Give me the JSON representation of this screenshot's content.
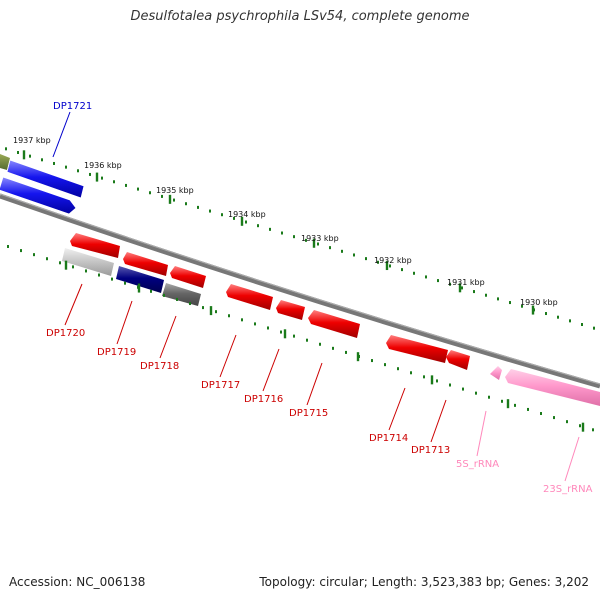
{
  "title": "Desulfotalea psychrophila LSv54, complete genome",
  "footer": {
    "accession": "Accession: NC_006138",
    "info": "Topology: circular; Length: 3,523,383 bp; Genes: 3,202"
  },
  "colors": {
    "forward_gene": "#1515ee",
    "reverse_gene": "#ee0000",
    "rrna": "#ff99cc",
    "tick": "#1a7a1a",
    "backbone": "#888888"
  },
  "scale_labels": [
    "1937 kbp",
    "1936 kbp",
    "1935 kbp",
    "1934 kbp",
    "1933 kbp",
    "1932 kbp",
    "1931 kbp",
    "1930 kbp"
  ],
  "gene_labels": {
    "DP1721": "DP1721",
    "DP1720": "DP1720",
    "DP1719": "DP1719",
    "DP1718": "DP1718",
    "DP1717": "DP1717",
    "DP1716": "DP1716",
    "DP1715": "DP1715",
    "DP1714": "DP1714",
    "DP1713": "DP1713",
    "5S_rRNA": "5S_rRNA",
    "23S_rRNA": "23S_rRNA"
  }
}
